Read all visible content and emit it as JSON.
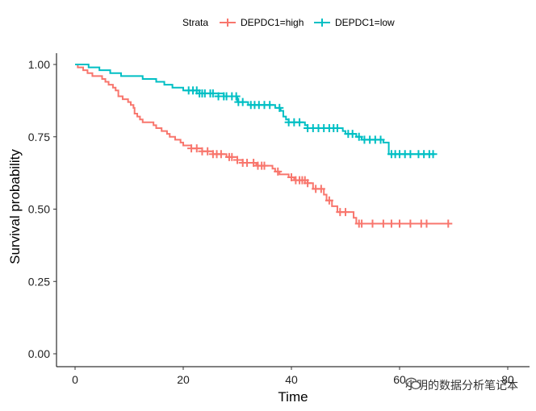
{
  "chart_data": {
    "type": "line",
    "subtype": "kaplan-meier",
    "title": "",
    "xlabel": "Time",
    "ylabel": "Survival probability",
    "xlim": [
      0,
      80
    ],
    "ylim": [
      0,
      1
    ],
    "xticks": [
      0,
      20,
      40,
      60,
      80
    ],
    "yticks": [
      0.0,
      0.25,
      0.5,
      0.75,
      1.0
    ],
    "ytick_labels": [
      "0.00",
      "0.25",
      "0.50",
      "0.75",
      "1.00"
    ],
    "grid": false,
    "legend": {
      "position": "top",
      "title": "Strata",
      "entries": [
        "DEPDC1=high",
        "DEPDC1=low"
      ]
    },
    "series": [
      {
        "name": "DEPDC1=high",
        "color": "#F8766D",
        "steps": [
          [
            0,
            1.0
          ],
          [
            0.5,
            0.99
          ],
          [
            1.5,
            0.98
          ],
          [
            2.3,
            0.97
          ],
          [
            3.2,
            0.96
          ],
          [
            5.0,
            0.95
          ],
          [
            5.6,
            0.94
          ],
          [
            6.2,
            0.93
          ],
          [
            7.0,
            0.92
          ],
          [
            7.5,
            0.91
          ],
          [
            8.0,
            0.89
          ],
          [
            8.8,
            0.88
          ],
          [
            9.8,
            0.87
          ],
          [
            10.3,
            0.86
          ],
          [
            10.8,
            0.85
          ],
          [
            11.0,
            0.83
          ],
          [
            11.5,
            0.82
          ],
          [
            12.0,
            0.81
          ],
          [
            12.5,
            0.8
          ],
          [
            14.5,
            0.79
          ],
          [
            15.0,
            0.78
          ],
          [
            16.0,
            0.77
          ],
          [
            17.0,
            0.76
          ],
          [
            17.5,
            0.75
          ],
          [
            18.5,
            0.74
          ],
          [
            19.5,
            0.73
          ],
          [
            20.0,
            0.72
          ],
          [
            21.5,
            0.71
          ],
          [
            23.5,
            0.7
          ],
          [
            25.5,
            0.69
          ],
          [
            28.0,
            0.68
          ],
          [
            30.0,
            0.67
          ],
          [
            31.0,
            0.66
          ],
          [
            33.5,
            0.65
          ],
          [
            36.5,
            0.64
          ],
          [
            37.0,
            0.63
          ],
          [
            37.8,
            0.62
          ],
          [
            39.5,
            0.61
          ],
          [
            40.5,
            0.6
          ],
          [
            43.0,
            0.59
          ],
          [
            44.0,
            0.57
          ],
          [
            46.0,
            0.55
          ],
          [
            46.5,
            0.53
          ],
          [
            47.5,
            0.51
          ],
          [
            48.5,
            0.49
          ],
          [
            51.5,
            0.47
          ],
          [
            52.0,
            0.45
          ],
          [
            69.5,
            0.45
          ]
        ],
        "censored": [
          [
            21.5,
            0.71
          ],
          [
            22.5,
            0.71
          ],
          [
            23.5,
            0.7
          ],
          [
            24.5,
            0.7
          ],
          [
            25.5,
            0.69
          ],
          [
            26.2,
            0.69
          ],
          [
            27.0,
            0.69
          ],
          [
            28.5,
            0.68
          ],
          [
            29.0,
            0.68
          ],
          [
            30.0,
            0.67
          ],
          [
            31.0,
            0.66
          ],
          [
            31.8,
            0.66
          ],
          [
            33.0,
            0.66
          ],
          [
            33.8,
            0.65
          ],
          [
            34.5,
            0.65
          ],
          [
            35.0,
            0.65
          ],
          [
            37.5,
            0.63
          ],
          [
            40.0,
            0.61
          ],
          [
            40.8,
            0.6
          ],
          [
            41.5,
            0.6
          ],
          [
            42.0,
            0.6
          ],
          [
            42.5,
            0.6
          ],
          [
            43.0,
            0.59
          ],
          [
            44.5,
            0.57
          ],
          [
            45.5,
            0.57
          ],
          [
            47.0,
            0.53
          ],
          [
            49.0,
            0.49
          ],
          [
            50.0,
            0.49
          ],
          [
            52.5,
            0.45
          ],
          [
            53.0,
            0.45
          ],
          [
            55.0,
            0.45
          ],
          [
            57.0,
            0.45
          ],
          [
            58.5,
            0.45
          ],
          [
            60.0,
            0.45
          ],
          [
            62.0,
            0.45
          ],
          [
            64.0,
            0.45
          ],
          [
            65.0,
            0.45
          ],
          [
            69.0,
            0.45
          ]
        ]
      },
      {
        "name": "DEPDC1=low",
        "color": "#00BFC4",
        "steps": [
          [
            0,
            1.0
          ],
          [
            2.5,
            0.99
          ],
          [
            4.5,
            0.98
          ],
          [
            6.5,
            0.97
          ],
          [
            8.5,
            0.96
          ],
          [
            12.5,
            0.95
          ],
          [
            15.0,
            0.94
          ],
          [
            16.5,
            0.93
          ],
          [
            18.0,
            0.92
          ],
          [
            20.0,
            0.91
          ],
          [
            23.0,
            0.9
          ],
          [
            27.5,
            0.89
          ],
          [
            30.0,
            0.87
          ],
          [
            32.0,
            0.86
          ],
          [
            37.0,
            0.85
          ],
          [
            38.0,
            0.84
          ],
          [
            38.5,
            0.82
          ],
          [
            39.0,
            0.81
          ],
          [
            39.5,
            0.8
          ],
          [
            42.5,
            0.79
          ],
          [
            43.0,
            0.78
          ],
          [
            49.5,
            0.77
          ],
          [
            50.0,
            0.76
          ],
          [
            52.0,
            0.75
          ],
          [
            53.0,
            0.74
          ],
          [
            57.0,
            0.73
          ],
          [
            58.0,
            0.69
          ],
          [
            66.5,
            0.69
          ]
        ],
        "censored": [
          [
            21.0,
            0.91
          ],
          [
            21.8,
            0.91
          ],
          [
            22.5,
            0.91
          ],
          [
            23.0,
            0.9
          ],
          [
            23.5,
            0.9
          ],
          [
            24.0,
            0.9
          ],
          [
            25.0,
            0.9
          ],
          [
            25.5,
            0.9
          ],
          [
            26.5,
            0.89
          ],
          [
            27.5,
            0.89
          ],
          [
            28.0,
            0.89
          ],
          [
            29.0,
            0.89
          ],
          [
            29.8,
            0.89
          ],
          [
            30.2,
            0.87
          ],
          [
            31.0,
            0.87
          ],
          [
            32.5,
            0.86
          ],
          [
            33.2,
            0.86
          ],
          [
            34.0,
            0.86
          ],
          [
            35.0,
            0.86
          ],
          [
            36.0,
            0.86
          ],
          [
            37.8,
            0.85
          ],
          [
            39.5,
            0.8
          ],
          [
            40.5,
            0.8
          ],
          [
            41.5,
            0.8
          ],
          [
            43.0,
            0.78
          ],
          [
            44.0,
            0.78
          ],
          [
            45.0,
            0.78
          ],
          [
            46.0,
            0.78
          ],
          [
            47.0,
            0.78
          ],
          [
            47.8,
            0.78
          ],
          [
            48.5,
            0.78
          ],
          [
            50.5,
            0.76
          ],
          [
            51.3,
            0.76
          ],
          [
            52.5,
            0.75
          ],
          [
            53.5,
            0.74
          ],
          [
            54.5,
            0.74
          ],
          [
            55.5,
            0.74
          ],
          [
            56.5,
            0.74
          ],
          [
            58.5,
            0.69
          ],
          [
            59.2,
            0.69
          ],
          [
            60.0,
            0.69
          ],
          [
            61.0,
            0.69
          ],
          [
            62.0,
            0.69
          ],
          [
            63.5,
            0.69
          ],
          [
            64.5,
            0.69
          ],
          [
            65.5,
            0.69
          ],
          [
            66.2,
            0.69
          ]
        ]
      }
    ]
  },
  "watermark": {
    "text": "小明的数据分析笔记本",
    "icon": "wechat-icon"
  }
}
